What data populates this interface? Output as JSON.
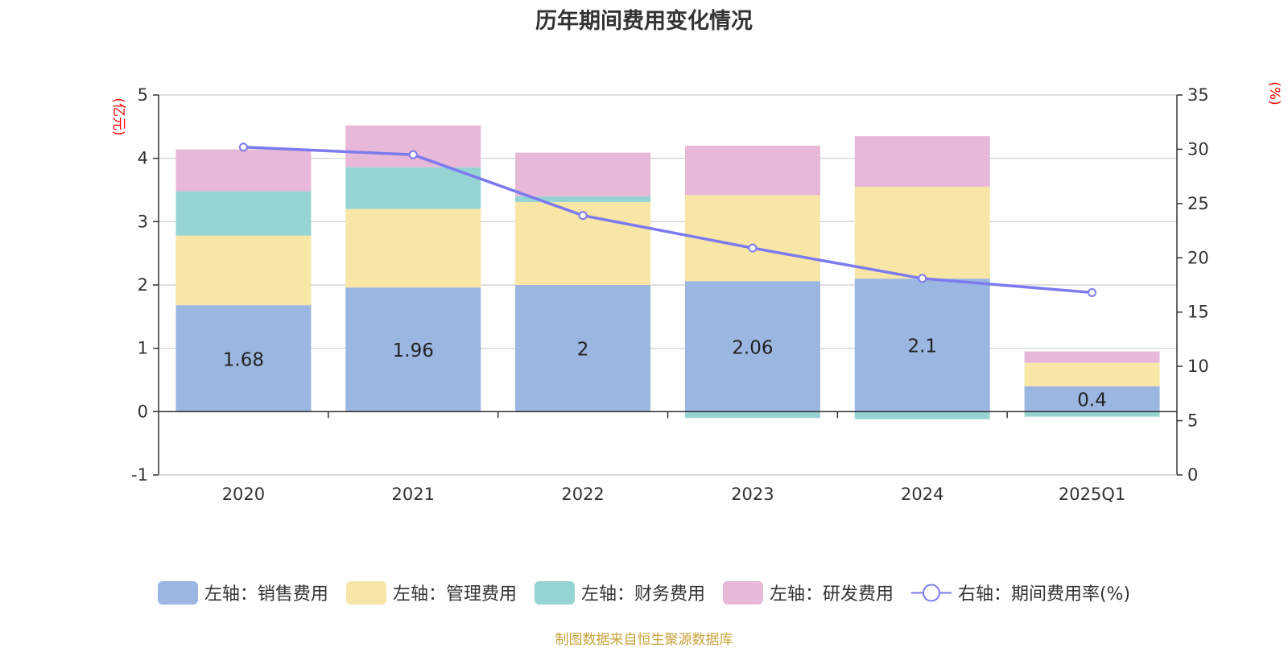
{
  "title": "历年期间费用变化情况",
  "source_note": "制图数据来自恒生聚源数据库",
  "chart_data": {
    "type": "bar",
    "stacked": true,
    "title": "历年期间费用变化情况",
    "categories": [
      "2020",
      "2021",
      "2022",
      "2023",
      "2024",
      "2025Q1"
    ],
    "left_axis": {
      "unit": "(亿元)",
      "ylim": [
        -1,
        5
      ],
      "ticks": [
        "-1",
        "0",
        "1",
        "2",
        "3",
        "4",
        "5"
      ]
    },
    "right_axis": {
      "unit": "(%)",
      "ylim": [
        0,
        35
      ],
      "ticks": [
        "0",
        "5",
        "10",
        "15",
        "20",
        "25",
        "30",
        "35"
      ]
    },
    "grid": true,
    "legend_position": "bottom",
    "series": [
      {
        "name": "左轴：销售费用",
        "axis": "left",
        "color": "#9bb6e0",
        "values": [
          1.68,
          1.96,
          2.0,
          2.06,
          2.1,
          0.4
        ],
        "labels": [
          "1.68",
          "1.96",
          "2",
          "2.06",
          "2.1",
          "0.4"
        ]
      },
      {
        "name": "左轴：管理费用",
        "axis": "left",
        "color": "#f7e6a6",
        "values": [
          1.1,
          1.24,
          1.31,
          1.36,
          1.45,
          0.37
        ]
      },
      {
        "name": "左轴：财务费用",
        "axis": "left",
        "color": "#96d4d4",
        "values": [
          0.7,
          0.66,
          0.09,
          -0.1,
          -0.12,
          -0.08
        ]
      },
      {
        "name": "左轴：研发费用",
        "axis": "left",
        "color": "#e8b8d8",
        "values": [
          0.66,
          0.66,
          0.69,
          0.78,
          0.8,
          0.18
        ]
      },
      {
        "name": "右轴：期间费用率(%)",
        "axis": "right",
        "type": "line",
        "color": "#7b7bef",
        "values": [
          30.2,
          29.5,
          23.9,
          20.9,
          18.1,
          16.8
        ]
      }
    ]
  }
}
